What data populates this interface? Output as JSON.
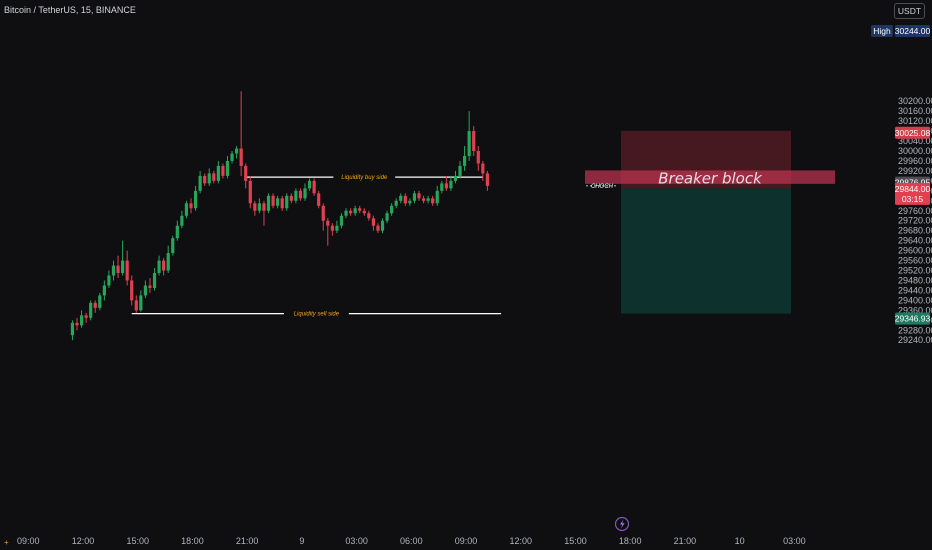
{
  "header": {
    "title": "Bitcoin / TetherUS, 15, BINANCE",
    "currency": "USDT"
  },
  "chart_data": {
    "type": "candlestick",
    "y_axis": {
      "range": [
        29230,
        30260
      ],
      "ticks": [
        30200,
        30160,
        30120,
        30080,
        30040,
        30000,
        29960,
        29920,
        29880,
        29840,
        29800,
        29760,
        29720,
        29680,
        29640,
        29600,
        29560,
        29520,
        29480,
        29440,
        29400,
        29360,
        29320,
        29280,
        29240
      ],
      "tick_labels": [
        "30200.00",
        "30160.00",
        "30120.00",
        "30080.00",
        "30040.00",
        "30000.00",
        "29960.00",
        "29920.00",
        "29880.00",
        "29840.00",
        "29800.00",
        "29760.00",
        "29720.00",
        "29680.00",
        "29640.00",
        "29600.00",
        "29560.00",
        "29520.00",
        "29480.00",
        "29440.00",
        "29400.00",
        "29360.00",
        "29320.00",
        "29280.00",
        "29240.00"
      ]
    },
    "x_axis": {
      "ticks": [
        {
          "bar": -12,
          "label": "09:00"
        },
        {
          "bar": 0,
          "label": "12:00"
        },
        {
          "bar": 12,
          "label": "15:00"
        },
        {
          "bar": 24,
          "label": "18:00"
        },
        {
          "bar": 36,
          "label": "21:00"
        },
        {
          "bar": 48,
          "label": "9"
        },
        {
          "bar": 60,
          "label": "03:00"
        },
        {
          "bar": 72,
          "label": "06:00"
        },
        {
          "bar": 84,
          "label": "09:00"
        },
        {
          "bar": 96,
          "label": "12:00"
        },
        {
          "bar": 108,
          "label": "15:00"
        },
        {
          "bar": 120,
          "label": "18:00"
        },
        {
          "bar": 132,
          "label": "21:00"
        },
        {
          "bar": 144,
          "label": "10"
        },
        {
          "bar": 156,
          "label": "03:00"
        }
      ]
    },
    "candles": [
      [
        29260,
        29310,
        29240,
        29320
      ],
      [
        29310,
        29300,
        29280,
        29330
      ],
      [
        29300,
        29340,
        29290,
        29360
      ],
      [
        29340,
        29330,
        29310,
        29350
      ],
      [
        29330,
        29390,
        29320,
        29400
      ],
      [
        29390,
        29370,
        29350,
        29400
      ],
      [
        29370,
        29420,
        29360,
        29430
      ],
      [
        29420,
        29460,
        29400,
        29480
      ],
      [
        29460,
        29500,
        29450,
        29520
      ],
      [
        29500,
        29540,
        29480,
        29560
      ],
      [
        29540,
        29510,
        29490,
        29580
      ],
      [
        29510,
        29560,
        29500,
        29640
      ],
      [
        29560,
        29480,
        29460,
        29600
      ],
      [
        29480,
        29400,
        29380,
        29500
      ],
      [
        29400,
        29360,
        29350,
        29420
      ],
      [
        29360,
        29420,
        29355,
        29440
      ],
      [
        29420,
        29460,
        29410,
        29480
      ],
      [
        29460,
        29450,
        29430,
        29490
      ],
      [
        29450,
        29510,
        29440,
        29530
      ],
      [
        29510,
        29560,
        29500,
        29580
      ],
      [
        29560,
        29520,
        29500,
        29570
      ],
      [
        29520,
        29590,
        29510,
        29620
      ],
      [
        29590,
        29650,
        29580,
        29660
      ],
      [
        29650,
        29700,
        29640,
        29720
      ],
      [
        29700,
        29740,
        29690,
        29760
      ],
      [
        29740,
        29790,
        29730,
        29800
      ],
      [
        29790,
        29770,
        29750,
        29810
      ],
      [
        29770,
        29840,
        29760,
        29860
      ],
      [
        29840,
        29900,
        29830,
        29920
      ],
      [
        29900,
        29870,
        29860,
        29910
      ],
      [
        29870,
        29910,
        29860,
        29930
      ],
      [
        29910,
        29880,
        29870,
        29920
      ],
      [
        29880,
        29940,
        29870,
        29960
      ],
      [
        29940,
        29900,
        29890,
        29950
      ],
      [
        29900,
        29960,
        29890,
        29980
      ],
      [
        29960,
        29990,
        29950,
        30000
      ],
      [
        29990,
        30010,
        29970,
        30020
      ],
      [
        30010,
        29940,
        29900,
        30240
      ],
      [
        29940,
        29880,
        29850,
        29950
      ],
      [
        29880,
        29790,
        29770,
        29900
      ],
      [
        29790,
        29760,
        29740,
        29800
      ],
      [
        29760,
        29790,
        29750,
        29810
      ],
      [
        29790,
        29760,
        29700,
        29800
      ],
      [
        29760,
        29820,
        29750,
        29830
      ],
      [
        29820,
        29780,
        29770,
        29830
      ],
      [
        29780,
        29810,
        29770,
        29820
      ],
      [
        29810,
        29770,
        29760,
        29820
      ],
      [
        29770,
        29820,
        29760,
        29830
      ],
      [
        29820,
        29800,
        29790,
        29830
      ],
      [
        29800,
        29840,
        29790,
        29850
      ],
      [
        29840,
        29810,
        29800,
        29850
      ],
      [
        29810,
        29850,
        29800,
        29870
      ],
      [
        29850,
        29880,
        29840,
        29890
      ],
      [
        29880,
        29830,
        29820,
        29890
      ],
      [
        29830,
        29780,
        29770,
        29840
      ],
      [
        29780,
        29720,
        29680,
        29790
      ],
      [
        29720,
        29700,
        29620,
        29730
      ],
      [
        29700,
        29680,
        29660,
        29710
      ],
      [
        29680,
        29700,
        29670,
        29720
      ],
      [
        29700,
        29740,
        29690,
        29750
      ],
      [
        29740,
        29760,
        29730,
        29770
      ],
      [
        29760,
        29750,
        29740,
        29770
      ],
      [
        29750,
        29770,
        29740,
        29780
      ],
      [
        29770,
        29760,
        29750,
        29780
      ],
      [
        29760,
        29750,
        29740,
        29770
      ],
      [
        29750,
        29730,
        29720,
        29760
      ],
      [
        29730,
        29700,
        29680,
        29740
      ],
      [
        29700,
        29680,
        29670,
        29710
      ],
      [
        29680,
        29720,
        29670,
        29730
      ],
      [
        29720,
        29750,
        29710,
        29760
      ],
      [
        29750,
        29780,
        29740,
        29790
      ],
      [
        29780,
        29800,
        29770,
        29810
      ],
      [
        29800,
        29820,
        29790,
        29830
      ],
      [
        29820,
        29790,
        29780,
        29830
      ],
      [
        29790,
        29800,
        29780,
        29810
      ],
      [
        29800,
        29830,
        29790,
        29840
      ],
      [
        29830,
        29810,
        29800,
        29840
      ],
      [
        29810,
        29800,
        29790,
        29820
      ],
      [
        29800,
        29810,
        29790,
        29820
      ],
      [
        29810,
        29790,
        29780,
        29820
      ],
      [
        29790,
        29840,
        29780,
        29860
      ],
      [
        29840,
        29870,
        29830,
        29880
      ],
      [
        29870,
        29850,
        29840,
        29900
      ],
      [
        29850,
        29880,
        29840,
        29900
      ],
      [
        29880,
        29900,
        29870,
        29920
      ],
      [
        29900,
        29940,
        29890,
        29960
      ],
      [
        29940,
        29980,
        29920,
        30020
      ],
      [
        29980,
        30080,
        29960,
        30160
      ],
      [
        30080,
        30000,
        29980,
        30100
      ],
      [
        30000,
        29950,
        29920,
        30020
      ],
      [
        29950,
        29910,
        29880,
        29960
      ],
      [
        29910,
        29860,
        29840,
        29920
      ]
    ],
    "candle_x0_bar": -1,
    "levels": [
      {
        "name": "Liquidity buy side",
        "price": 29895,
        "from_bar": 37,
        "to_bar": 89
      },
      {
        "name": "Liquidity sell side",
        "price": 29347,
        "from_bar": 12,
        "to_bar": 93
      }
    ],
    "annotations": {
      "choch": "CHOCH",
      "breaker_block": "Breaker block",
      "breaker_block_range": [
        29872,
        29910
      ],
      "stop_zone": [
        29850,
        30025
      ],
      "target_zone": [
        29347,
        29850
      ]
    },
    "price_tags": {
      "high": {
        "label": "High",
        "value": "30244.00",
        "price": 30244
      },
      "stop": {
        "value": "30025.08",
        "price": 30025
      },
      "breaker": {
        "value": "29876.95",
        "price": 29877
      },
      "current": {
        "value": "29844.00",
        "timer": "03:15",
        "price": 29844
      },
      "target": {
        "value": "29346.93",
        "price": 29347
      }
    }
  },
  "colors": {
    "background": "#0f0f12",
    "up": "#26a65b",
    "down": "#e0404f",
    "stop_zone": "#5a1c24",
    "target_zone": "#0c3a33",
    "breaker": "#b8334f",
    "level_line": "#ffffff",
    "level_text": "#f7a21b"
  },
  "icons": {
    "lightning": "lightning-icon"
  }
}
